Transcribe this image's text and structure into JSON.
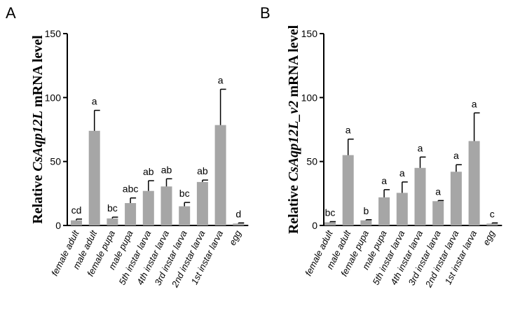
{
  "chart_data": [
    {
      "type": "bar",
      "panel_label": "A",
      "ylabel_prefix": "Relative ",
      "ylabel_gene": "CsAqp12L",
      "ylabel_suffix": " mRNA level",
      "ylim": [
        0,
        150
      ],
      "yticks": [
        0,
        50,
        100,
        150
      ],
      "grid": false,
      "bar_color": "#a6a6a6",
      "categories": [
        "female adult",
        "male adult",
        "female pupa",
        "male pupa",
        "5th instar larva",
        "4th instar larva",
        "3rd instar larva",
        "2nd instar larva",
        "1st instar larva",
        "egg"
      ],
      "values": [
        4,
        74,
        5.5,
        17.5,
        27,
        30.5,
        15,
        34,
        78.5,
        1.5
      ],
      "errors": [
        1,
        16,
        1,
        4,
        8,
        6,
        3,
        1.5,
        28,
        0.5
      ],
      "significance": [
        "cd",
        "a",
        "bc",
        "abc",
        "ab",
        "ab",
        "bc",
        "ab",
        "a",
        "d"
      ]
    },
    {
      "type": "bar",
      "panel_label": "B",
      "ylabel_prefix": "Relative ",
      "ylabel_gene": "CsAqp12L_v2",
      "ylabel_suffix": " mRNA level",
      "ylim": [
        0,
        150
      ],
      "yticks": [
        0,
        50,
        100,
        150
      ],
      "grid": false,
      "bar_color": "#a6a6a6",
      "categories": [
        "female adult",
        "male adult",
        "female pupa",
        "male pupa",
        "5th instar larva",
        "4th instar larva",
        "3rd instar larva",
        "2nd instar larva",
        "1st instar larva",
        "egg"
      ],
      "values": [
        2.5,
        55,
        4,
        22,
        25.5,
        45,
        19,
        42,
        66,
        1.5
      ],
      "errors": [
        0.5,
        12.5,
        0.5,
        6,
        8.5,
        8.5,
        0.5,
        5.5,
        22,
        0.5
      ],
      "significance": [
        "bc",
        "a",
        "b",
        "a",
        "a",
        "a",
        "a",
        "a",
        "a",
        "c"
      ]
    }
  ]
}
